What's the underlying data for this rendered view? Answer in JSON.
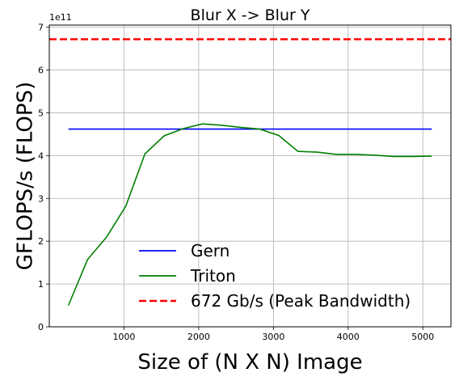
{
  "chart_data": {
    "type": "line",
    "title": "Blur X -> Blur Y",
    "xlabel": "Size of (N X N) Image",
    "ylabel": "GFLOPS/s (FLOPS)",
    "y_offset_label": "1e11",
    "xlim": [
      0,
      5376
    ],
    "ylim": [
      0,
      7.05
    ],
    "x_ticks": [
      1000,
      2000,
      3000,
      4000,
      5000
    ],
    "x_tick_labels": [
      "1000",
      "2000",
      "3000",
      "4000",
      "5000"
    ],
    "y_ticks": [
      0,
      1,
      2,
      3,
      4,
      5,
      6,
      7
    ],
    "y_tick_labels": [
      "0",
      "1",
      "2",
      "3",
      "4",
      "5",
      "6",
      "7"
    ],
    "grid": true,
    "legend_position": "lower-center",
    "series": [
      {
        "name": "Gern",
        "color": "#0000ff",
        "style": "solid",
        "x": [
          256,
          5120
        ],
        "y": [
          4.62,
          4.62
        ]
      },
      {
        "name": "Triton",
        "color": "#008000",
        "style": "solid",
        "x": [
          256,
          512,
          768,
          1024,
          1280,
          1536,
          1792,
          2048,
          2304,
          2560,
          2816,
          3072,
          3328,
          3584,
          3840,
          4096,
          4352,
          4608,
          4864,
          5120
        ],
        "y": [
          0.5,
          1.57,
          2.1,
          2.82,
          4.04,
          4.46,
          4.63,
          4.74,
          4.71,
          4.66,
          4.62,
          4.47,
          4.1,
          4.08,
          4.03,
          4.03,
          4.01,
          3.98,
          3.98,
          3.99
        ]
      },
      {
        "name": "672 Gb/s (Peak Bandwidth)",
        "color": "#ff0000",
        "style": "dashed",
        "hline": 6.72
      }
    ]
  }
}
